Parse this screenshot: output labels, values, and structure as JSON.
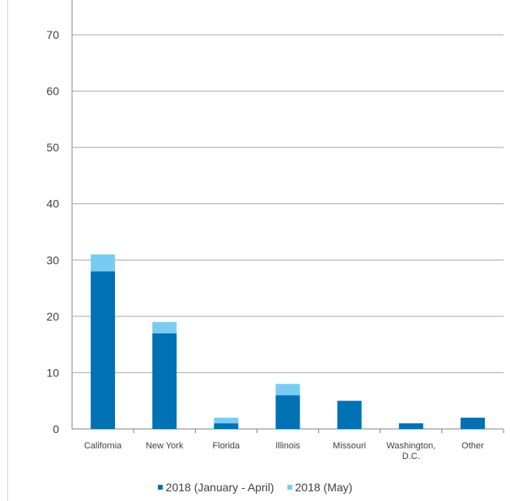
{
  "colors": {
    "series_1": "#0071b3",
    "series_2": "#78ccf1",
    "gridline": "#a6a6a6",
    "axis": "#808080",
    "text": "#404040"
  },
  "chart_data": {
    "type": "bar",
    "stacked": true,
    "categories": [
      "California",
      "New York",
      "Florida",
      "Illinois",
      "Missouri",
      "Washington, D.C.",
      "Other"
    ],
    "category_lines": [
      [
        "California"
      ],
      [
        "New York"
      ],
      [
        "Florida"
      ],
      [
        "Illinois"
      ],
      [
        "Missouri"
      ],
      [
        "Washington,",
        "D.C."
      ],
      [
        "Other"
      ]
    ],
    "series": [
      {
        "name": "2018 (January - April)",
        "values": [
          28,
          17,
          1,
          6,
          5,
          1,
          2
        ]
      },
      {
        "name": "2018 (May)",
        "values": [
          3,
          2,
          1,
          2,
          0,
          0,
          0
        ]
      }
    ],
    "ylim": [
      0,
      70
    ],
    "yticks": [
      0,
      10,
      20,
      30,
      40,
      50,
      60,
      70
    ],
    "grid": true,
    "legend_position": "bottom"
  }
}
